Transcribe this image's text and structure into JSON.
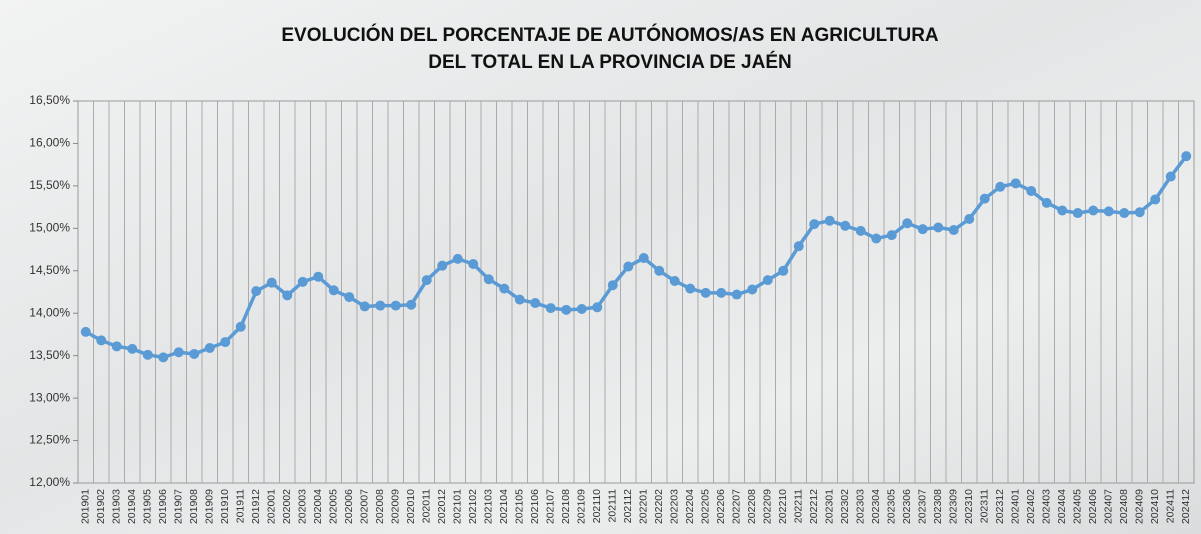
{
  "chart_data": {
    "type": "line",
    "title": [
      "EVOLUCIÓN DEL PORCENTAJE DE AUTÓNOMOS/AS EN AGRICULTURA",
      "DEL TOTAL EN LA PROVINCIA DE JAÉN"
    ],
    "categories": [
      "201901",
      "201902",
      "201903",
      "201904",
      "201905",
      "201906",
      "201907",
      "201908",
      "201909",
      "201910",
      "201911",
      "201912",
      "202001",
      "202002",
      "202003",
      "202004",
      "202005",
      "202006",
      "202007",
      "202008",
      "202009",
      "202010",
      "202011",
      "202012",
      "202101",
      "202102",
      "202103",
      "202104",
      "202105",
      "202106",
      "202107",
      "202108",
      "202109",
      "202110",
      "202111",
      "202112",
      "202201",
      "202202",
      "202203",
      "202204",
      "202205",
      "202206",
      "202207",
      "202208",
      "202209",
      "202210",
      "202211",
      "202212",
      "202301",
      "202302",
      "202303",
      "202304",
      "202305",
      "202306",
      "202307",
      "202308",
      "202309",
      "202310",
      "202311",
      "202312",
      "202401",
      "202402",
      "202403",
      "202404",
      "202405",
      "202406",
      "202407",
      "202408",
      "202409",
      "202410",
      "202411",
      "202412"
    ],
    "values": [
      13.78,
      13.68,
      13.61,
      13.58,
      13.51,
      13.48,
      13.54,
      13.52,
      13.59,
      13.66,
      13.84,
      14.26,
      14.36,
      14.21,
      14.37,
      14.43,
      14.27,
      14.19,
      14.08,
      14.09,
      14.09,
      14.1,
      14.39,
      14.56,
      14.64,
      14.58,
      14.4,
      14.29,
      14.16,
      14.12,
      14.06,
      14.04,
      14.05,
      14.07,
      14.33,
      14.55,
      14.65,
      14.5,
      14.38,
      14.29,
      14.24,
      14.24,
      14.22,
      14.28,
      14.39,
      14.5,
      14.79,
      15.05,
      15.09,
      15.03,
      14.97,
      14.88,
      14.92,
      15.06,
      14.99,
      15.01,
      14.98,
      15.11,
      15.35,
      15.49,
      15.53,
      15.44,
      15.3,
      15.21,
      15.18,
      15.21,
      15.2,
      15.18,
      15.19,
      15.34,
      15.61,
      15.85
    ],
    "color": "#5b9bd5",
    "ylim": [
      12,
      16.5
    ],
    "yticks": [
      {
        "value": 12,
        "label": "12,00%"
      },
      {
        "value": 12.5,
        "label": "12,50%"
      },
      {
        "value": 13,
        "label": "13,00%"
      },
      {
        "value": 13.5,
        "label": "13,50%"
      },
      {
        "value": 14,
        "label": "14,00%"
      },
      {
        "value": 14.5,
        "label": "14,50%"
      },
      {
        "value": 15,
        "label": "15,00%"
      },
      {
        "value": 15.5,
        "label": "15,50%"
      },
      {
        "value": 16,
        "label": "16,00%"
      },
      {
        "value": 16.5,
        "label": "16,50%"
      }
    ]
  }
}
